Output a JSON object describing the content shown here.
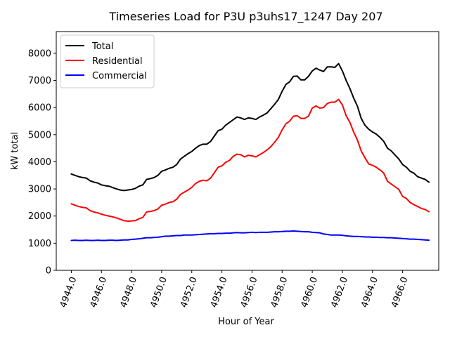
{
  "chart_data": {
    "type": "line",
    "title": "Timeseries Load for P3U p3uhs17_1247  Day 207",
    "xlabel": "Hour of Year",
    "ylabel": "kW total",
    "xlim": [
      4943.0,
      4968.4
    ],
    "ylim": [
      0,
      8800
    ],
    "x_ticks": [
      4944,
      4946,
      4948,
      4950,
      4952,
      4954,
      4956,
      4958,
      4960,
      4962,
      4964,
      4966
    ],
    "x_tick_labels": [
      "4944.0",
      "4946.0",
      "4948.0",
      "4950.0",
      "4952.0",
      "4954.0",
      "4956.0",
      "4958.0",
      "4960.0",
      "4962.0",
      "4964.0",
      "4966.0"
    ],
    "y_ticks": [
      0,
      1000,
      2000,
      3000,
      4000,
      5000,
      6000,
      7000,
      8000
    ],
    "y_tick_labels": [
      "0",
      "1000",
      "2000",
      "3000",
      "4000",
      "5000",
      "6000",
      "7000",
      "8000"
    ],
    "grid": false,
    "legend_position": "top-left",
    "x": [
      4944.0,
      4944.25,
      4944.5,
      4944.75,
      4945.0,
      4945.25,
      4945.5,
      4945.75,
      4946.0,
      4946.25,
      4946.5,
      4946.75,
      4947.0,
      4947.25,
      4947.5,
      4947.75,
      4948.0,
      4948.25,
      4948.5,
      4948.75,
      4949.0,
      4949.25,
      4949.5,
      4949.75,
      4950.0,
      4950.25,
      4950.5,
      4950.75,
      4951.0,
      4951.25,
      4951.5,
      4951.75,
      4952.0,
      4952.25,
      4952.5,
      4952.75,
      4953.0,
      4953.25,
      4953.5,
      4953.75,
      4954.0,
      4954.25,
      4954.5,
      4954.75,
      4955.0,
      4955.25,
      4955.5,
      4955.75,
      4956.0,
      4956.25,
      4956.5,
      4956.75,
      4957.0,
      4957.25,
      4957.5,
      4957.75,
      4958.0,
      4958.25,
      4958.5,
      4958.75,
      4959.0,
      4959.25,
      4959.5,
      4959.75,
      4960.0,
      4960.25,
      4960.5,
      4960.75,
      4961.0,
      4961.25,
      4961.5,
      4961.75,
      4962.0,
      4962.25,
      4962.5,
      4962.75,
      4963.0,
      4963.25,
      4963.5,
      4963.75,
      4964.0,
      4964.25,
      4964.5,
      4964.75,
      4965.0,
      4965.25,
      4965.5,
      4965.75,
      4966.0,
      4966.25,
      4966.5,
      4966.75,
      4967.0,
      4967.25,
      4967.5,
      4967.75
    ],
    "series": [
      {
        "name": "Total",
        "color": "#000000",
        "values": [
          3550,
          3500,
          3450,
          3420,
          3400,
          3300,
          3250,
          3220,
          3150,
          3120,
          3100,
          3050,
          3000,
          2960,
          2940,
          2960,
          2980,
          3020,
          3100,
          3150,
          3350,
          3380,
          3420,
          3500,
          3650,
          3700,
          3760,
          3800,
          3900,
          4100,
          4200,
          4300,
          4380,
          4500,
          4600,
          4650,
          4650,
          4750,
          4950,
          5150,
          5200,
          5350,
          5450,
          5550,
          5650,
          5620,
          5560,
          5620,
          5600,
          5560,
          5650,
          5720,
          5800,
          5960,
          6120,
          6300,
          6600,
          6850,
          6950,
          7150,
          7160,
          7020,
          7020,
          7150,
          7350,
          7450,
          7380,
          7330,
          7500,
          7500,
          7480,
          7620,
          7350,
          7000,
          6700,
          6350,
          6050,
          5600,
          5350,
          5200,
          5100,
          5020,
          4900,
          4750,
          4500,
          4400,
          4250,
          4100,
          3900,
          3800,
          3650,
          3580,
          3450,
          3400,
          3350,
          3250
        ]
      },
      {
        "name": "Residential",
        "color": "#ff0000",
        "values": [
          2450,
          2400,
          2350,
          2320,
          2300,
          2200,
          2150,
          2120,
          2070,
          2030,
          2000,
          1970,
          1930,
          1880,
          1830,
          1810,
          1820,
          1830,
          1900,
          1950,
          2150,
          2170,
          2200,
          2260,
          2400,
          2440,
          2500,
          2530,
          2620,
          2800,
          2880,
          2960,
          3060,
          3200,
          3280,
          3320,
          3300,
          3400,
          3600,
          3800,
          3850,
          3980,
          4050,
          4200,
          4280,
          4260,
          4180,
          4240,
          4220,
          4180,
          4260,
          4340,
          4440,
          4560,
          4720,
          4900,
          5180,
          5400,
          5500,
          5680,
          5700,
          5600,
          5600,
          5680,
          5980,
          6060,
          5980,
          6000,
          6150,
          6200,
          6200,
          6300,
          6100,
          5700,
          5450,
          5100,
          4800,
          4400,
          4150,
          3920,
          3870,
          3800,
          3700,
          3580,
          3280,
          3180,
          3080,
          2980,
          2720,
          2650,
          2500,
          2420,
          2350,
          2280,
          2240,
          2160
        ]
      },
      {
        "name": "Commercial",
        "color": "#0000ff",
        "values": [
          1100,
          1110,
          1100,
          1100,
          1110,
          1100,
          1100,
          1110,
          1100,
          1100,
          1110,
          1110,
          1100,
          1110,
          1120,
          1120,
          1140,
          1150,
          1160,
          1180,
          1200,
          1200,
          1210,
          1220,
          1240,
          1260,
          1260,
          1270,
          1280,
          1280,
          1300,
          1300,
          1300,
          1310,
          1320,
          1330,
          1340,
          1350,
          1350,
          1360,
          1360,
          1370,
          1370,
          1380,
          1390,
          1380,
          1380,
          1390,
          1400,
          1390,
          1400,
          1400,
          1400,
          1410,
          1420,
          1420,
          1430,
          1440,
          1440,
          1450,
          1440,
          1430,
          1420,
          1420,
          1400,
          1390,
          1380,
          1340,
          1320,
          1300,
          1300,
          1300,
          1290,
          1270,
          1260,
          1250,
          1250,
          1240,
          1230,
          1230,
          1220,
          1220,
          1210,
          1210,
          1200,
          1200,
          1190,
          1180,
          1170,
          1160,
          1150,
          1150,
          1140,
          1130,
          1120,
          1110
        ]
      }
    ]
  }
}
